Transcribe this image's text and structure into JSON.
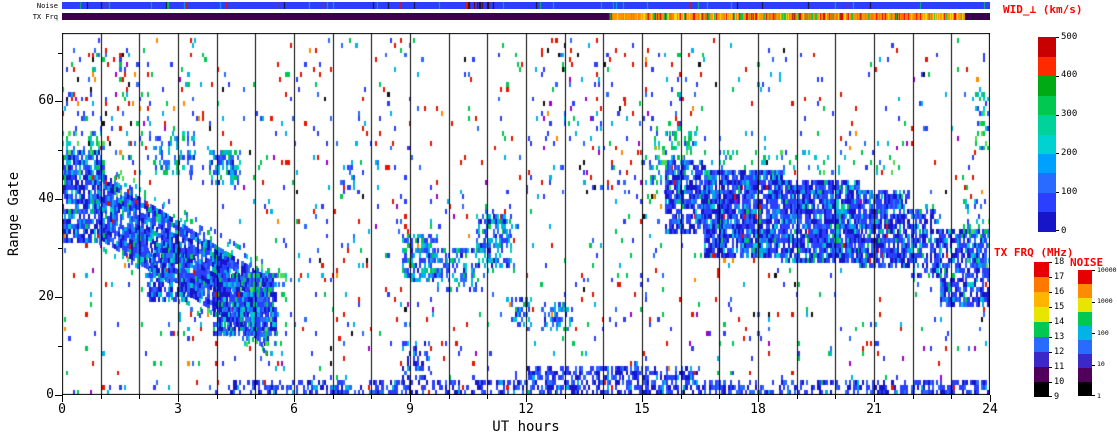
{
  "chart_data": {
    "type": "scatter",
    "description": "Radar range-time summary plot: perpendicular spectral width vs UT hour and range gate, with noise and transmit-frequency strips and three color scales",
    "xlabel": "UT hours",
    "ylabel": "Range Gate",
    "xlim": [
      0,
      24
    ],
    "ylim": [
      0,
      74
    ],
    "xticks": [
      0,
      3,
      6,
      9,
      12,
      15,
      18,
      21,
      24
    ],
    "yticks": [
      0,
      20,
      40,
      60
    ],
    "yticks_minor": [
      10,
      30,
      50,
      70
    ],
    "hour_gridlines": 1,
    "grid_color": "#000000",
    "cell": {
      "dt": 0.055,
      "dg": 1
    },
    "strips": {
      "noise": {
        "label": "Noise",
        "base_color": "#2a3fff",
        "tick_colors": [
          "#00c850",
          "#e61400",
          "#00b4e6",
          "#111111"
        ],
        "tick_density": 0.05,
        "clusters": [
          {
            "h0": 10.4,
            "h1": 11.2,
            "colors": [
              "#e61400",
              "#600000",
              "#111111"
            ],
            "density": 0.45
          }
        ]
      },
      "txfrq": {
        "label": "TX Frq",
        "segments": [
          {
            "h0": 0,
            "h1": 14.15,
            "color": "#3c0050",
            "tick_colors": [],
            "tick_density": 0
          },
          {
            "h0": 14.15,
            "h1": 23.35,
            "color": "#ff9600",
            "tick_colors": [
              "#e60000",
              "#ffe100",
              "#ff6e00",
              "#00c850"
            ],
            "tick_density": 0.6
          },
          {
            "h0": 23.35,
            "h1": 24,
            "color": "#3c0050",
            "tick_colors": [],
            "tick_density": 0
          }
        ]
      }
    },
    "colorbars": {
      "wid": {
        "title": "WID_⊥ (km/s)",
        "title_color": "#ff0000",
        "ticks": [
          "0",
          "100",
          "200",
          "300",
          "400",
          "500"
        ],
        "segments_bottom_to_top": [
          "#1616c8",
          "#2a3fff",
          "#2a6bff",
          "#00a0ff",
          "#00d2d2",
          "#00d29b",
          "#00c850",
          "#00aa14",
          "#ff2a00",
          "#c80000"
        ]
      },
      "txfrq": {
        "title": "TX FRQ (MHz)",
        "title_color": "#ff0000",
        "ticks": [
          "9",
          "10",
          "11",
          "12",
          "13",
          "14",
          "15",
          "16",
          "17",
          "18"
        ],
        "segments_bottom_to_top": [
          "#000000",
          "#50005a",
          "#3c28c8",
          "#2a6bff",
          "#00c850",
          "#e6e600",
          "#ffb400",
          "#ff7800",
          "#e60000"
        ]
      },
      "noise": {
        "title": "NOISE",
        "title_color": "#ff0000",
        "ticks": [
          "1",
          "10",
          "100",
          "1000",
          "10000"
        ],
        "segments_bottom_to_top": [
          "#000000",
          "#50005a",
          "#3c28c8",
          "#2a6bff",
          "#00b4e6",
          "#00c850",
          "#e6e600",
          "#ff8c00",
          "#e60000"
        ]
      }
    },
    "palettes": {
      "mainBlue": [
        [
          "#1616c8",
          0.3
        ],
        [
          "#2a3fff",
          0.34
        ],
        [
          "#2a6bff",
          0.16
        ],
        [
          "#00a8e6",
          0.1
        ],
        [
          "#00d2c8",
          0.05
        ],
        [
          "#00c850",
          0.04
        ],
        [
          "#e61000",
          0.01
        ]
      ],
      "cyanBlue": [
        [
          "#2a3fff",
          0.28
        ],
        [
          "#2a6bff",
          0.2
        ],
        [
          "#00b4e6",
          0.25
        ],
        [
          "#00d2b4",
          0.1
        ],
        [
          "#00c850",
          0.1
        ],
        [
          "#1616c8",
          0.07
        ]
      ],
      "cyanGreen": [
        [
          "#00c8d2",
          0.3
        ],
        [
          "#00c850",
          0.3
        ],
        [
          "#50dc50",
          0.12
        ],
        [
          "#2a6bff",
          0.14
        ],
        [
          "#2a3fff",
          0.14
        ]
      ],
      "lowBlue": [
        [
          "#2a3fff",
          0.45
        ],
        [
          "#1616c8",
          0.3
        ],
        [
          "#2a6bff",
          0.18
        ],
        [
          "#00b4e6",
          0.07
        ]
      ],
      "speckle": [
        [
          "#2a3fff",
          0.26
        ],
        [
          "#2a6bff",
          0.1
        ],
        [
          "#00b4e6",
          0.14
        ],
        [
          "#00c850",
          0.16
        ],
        [
          "#e61400",
          0.22
        ],
        [
          "#ff8c00",
          0.04
        ],
        [
          "#111111",
          0.04
        ],
        [
          "#a000c8",
          0.04
        ]
      ]
    },
    "features": [
      {
        "name": "speckle-all",
        "type": "box",
        "h0": 0,
        "h1": 24,
        "g0": 0,
        "g1": 73,
        "density": 0.035,
        "palette": "speckle"
      },
      {
        "name": "speckle-upper-left",
        "type": "box",
        "h0": 0,
        "h1": 2.3,
        "g0": 48,
        "g1": 70,
        "density": 0.09,
        "palette": "speckle"
      },
      {
        "name": "speckle-mid-upper",
        "type": "box",
        "h0": 12,
        "h1": 16,
        "g0": 40,
        "g1": 72,
        "density": 0.045,
        "palette": "speckle"
      },
      {
        "name": "speckle-pre-evening",
        "type": "box",
        "h0": 14.3,
        "h1": 15.6,
        "g0": 15,
        "g1": 45,
        "density": 0.05,
        "palette": "speckle"
      },
      {
        "name": "speckle-16-top",
        "type": "box",
        "h0": 15.8,
        "h1": 16.7,
        "g0": 50,
        "g1": 70,
        "density": 0.08,
        "palette": "speckle"
      },
      {
        "name": "low-band-early",
        "type": "box",
        "h0": 4.3,
        "h1": 12,
        "g0": 0,
        "g1": 3,
        "density": 0.45,
        "palette": "lowBlue"
      },
      {
        "name": "low-band-mid",
        "type": "box",
        "h0": 12,
        "h1": 16.5,
        "g0": 0,
        "g1": 6,
        "density": 0.55,
        "palette": "lowBlue"
      },
      {
        "name": "low-band-late",
        "type": "box",
        "h0": 16.5,
        "h1": 24,
        "g0": 0,
        "g1": 3,
        "density": 0.5,
        "palette": "lowBlue"
      },
      {
        "name": "initial-band",
        "type": "box",
        "h0": 0,
        "h1": 1,
        "g0": 31,
        "g1": 50,
        "density": 0.72,
        "palette": "mainBlue"
      },
      {
        "name": "initial-fringe",
        "type": "box",
        "h0": 0,
        "h1": 1.1,
        "g0": 44,
        "g1": 55,
        "density": 0.3,
        "palette": "cyanGreen"
      },
      {
        "name": "descending-fringe",
        "type": "slope",
        "h0": 0.9,
        "h1": 5.3,
        "gc0": 39,
        "gc1": 17,
        "hw": 10,
        "density": 0.18,
        "palette": "cyanGreen"
      },
      {
        "name": "descending-band",
        "type": "slope",
        "h0": 0.9,
        "h1": 5.3,
        "gc0": 39,
        "gc1": 17,
        "hw": 7,
        "density": 0.8,
        "palette": "mainBlue"
      },
      {
        "name": "blob-2-3",
        "type": "box",
        "h0": 2.2,
        "h1": 3.3,
        "g0": 19,
        "g1": 30,
        "density": 0.65,
        "palette": "mainBlue"
      },
      {
        "name": "blob-4-5",
        "type": "box",
        "h0": 3.9,
        "h1": 5.5,
        "g0": 12,
        "g1": 25,
        "density": 0.78,
        "palette": "mainBlue"
      },
      {
        "name": "blob-4-5-fringe",
        "type": "box",
        "h0": 4.6,
        "h1": 5.8,
        "g0": 10,
        "g1": 26,
        "density": 0.18,
        "palette": "cyanGreen"
      },
      {
        "name": "patch-upper-1",
        "type": "box",
        "h0": 2.4,
        "h1": 3.4,
        "g0": 45,
        "g1": 54,
        "density": 0.45,
        "palette": "cyanBlue"
      },
      {
        "name": "patch-upper-2",
        "type": "box",
        "h0": 3.8,
        "h1": 4.6,
        "g0": 43,
        "g1": 50,
        "density": 0.55,
        "palette": "cyanBlue"
      },
      {
        "name": "patch-7",
        "type": "box",
        "h0": 7.2,
        "h1": 7.7,
        "g0": 40,
        "g1": 49,
        "density": 0.2,
        "palette": "cyanBlue"
      },
      {
        "name": "midday-1",
        "type": "box",
        "h0": 8.8,
        "h1": 9.7,
        "g0": 23,
        "g1": 33,
        "density": 0.55,
        "palette": "cyanBlue"
      },
      {
        "name": "midday-2",
        "type": "box",
        "h0": 9.7,
        "h1": 10.7,
        "g0": 21,
        "g1": 30,
        "density": 0.45,
        "palette": "cyanBlue"
      },
      {
        "name": "midday-3",
        "type": "box",
        "h0": 10.7,
        "h1": 11.6,
        "g0": 26,
        "g1": 37,
        "density": 0.55,
        "palette": "cyanBlue"
      },
      {
        "name": "midday-4",
        "type": "box",
        "h0": 11.6,
        "h1": 12.1,
        "g0": 14,
        "g1": 20,
        "density": 0.45,
        "palette": "cyanBlue"
      },
      {
        "name": "midday-5",
        "type": "box",
        "h0": 12.4,
        "h1": 13.2,
        "g0": 13,
        "g1": 19,
        "density": 0.4,
        "palette": "cyanBlue"
      },
      {
        "name": "midday-low",
        "type": "box",
        "h0": 8.8,
        "h1": 9.5,
        "g0": 3,
        "g1": 11,
        "density": 0.35,
        "palette": "lowBlue"
      },
      {
        "name": "evening-fringe-top",
        "type": "box",
        "h0": 15.2,
        "h1": 16.4,
        "g0": 42,
        "g1": 55,
        "density": 0.28,
        "palette": "cyanGreen"
      },
      {
        "name": "evening-start",
        "type": "box",
        "h0": 15.6,
        "h1": 16.6,
        "g0": 33,
        "g1": 48,
        "density": 0.7,
        "palette": "mainBlue"
      },
      {
        "name": "evening-main-1",
        "type": "box",
        "h0": 16.6,
        "h1": 18.6,
        "g0": 28,
        "g1": 46,
        "density": 0.85,
        "palette": "mainBlue"
      },
      {
        "name": "evening-main-2",
        "type": "box",
        "h0": 18.6,
        "h1": 20.6,
        "g0": 27,
        "g1": 44,
        "density": 0.85,
        "palette": "mainBlue"
      },
      {
        "name": "evening-main-3",
        "type": "box",
        "h0": 20.6,
        "h1": 21.9,
        "g0": 26,
        "g1": 42,
        "density": 0.8,
        "palette": "mainBlue"
      },
      {
        "name": "evening-main-4",
        "type": "box",
        "h0": 21.9,
        "h1": 22.7,
        "g0": 24,
        "g1": 38,
        "density": 0.6,
        "palette": "mainBlue"
      },
      {
        "name": "evening-main-5",
        "type": "box",
        "h0": 22.7,
        "h1": 24,
        "g0": 18,
        "g1": 34,
        "density": 0.7,
        "palette": "mainBlue"
      },
      {
        "name": "evening-top-fringe",
        "type": "box",
        "h0": 16.6,
        "h1": 21.5,
        "g0": 45,
        "g1": 50,
        "density": 0.12,
        "palette": "cyanGreen"
      },
      {
        "name": "evening-fringe-end",
        "type": "box",
        "h0": 23.3,
        "h1": 24,
        "g0": 26,
        "g1": 40,
        "density": 0.25,
        "palette": "cyanGreen"
      },
      {
        "name": "end-top-patch",
        "type": "box",
        "h0": 23.6,
        "h1": 24,
        "g0": 50,
        "g1": 62,
        "density": 0.35,
        "palette": "cyanGreen"
      }
    ]
  }
}
